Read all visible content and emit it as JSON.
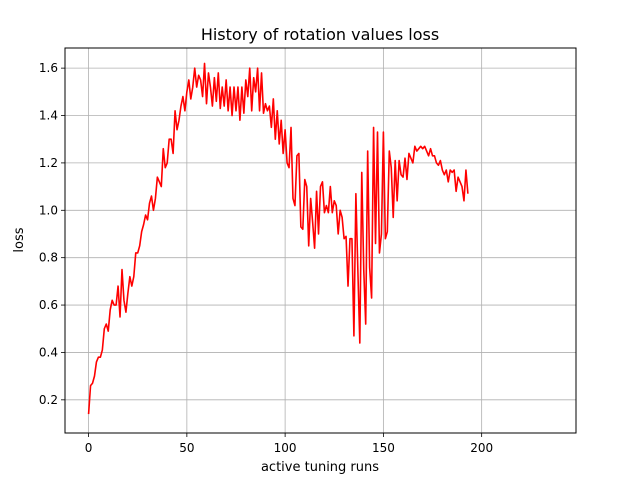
{
  "chart_data": {
    "type": "line",
    "title": "History of rotation values loss",
    "xlabel": "active tuning runs",
    "ylabel": "loss",
    "xlim": [
      -12,
      248
    ],
    "ylim": [
      0.06,
      1.685
    ],
    "xticks": [
      0,
      50,
      100,
      150,
      200
    ],
    "yticks": [
      0.2,
      0.4,
      0.6,
      0.8,
      1.0,
      1.2,
      1.4,
      1.6
    ],
    "ytick_labels": [
      "0.2",
      "0.4",
      "0.6",
      "0.8",
      "1.0",
      "1.2",
      "1.4",
      "1.6"
    ],
    "grid": true,
    "series": [
      {
        "color": "#ff0000",
        "x_start": 0,
        "x_step": 1,
        "values": [
          0.14,
          0.26,
          0.27,
          0.3,
          0.36,
          0.38,
          0.38,
          0.41,
          0.5,
          0.52,
          0.49,
          0.58,
          0.62,
          0.6,
          0.6,
          0.68,
          0.55,
          0.75,
          0.62,
          0.57,
          0.65,
          0.72,
          0.68,
          0.72,
          0.82,
          0.82,
          0.85,
          0.91,
          0.94,
          0.98,
          0.96,
          1.03,
          1.06,
          1.0,
          1.05,
          1.14,
          1.12,
          1.1,
          1.26,
          1.18,
          1.2,
          1.3,
          1.3,
          1.24,
          1.42,
          1.34,
          1.38,
          1.44,
          1.48,
          1.42,
          1.5,
          1.55,
          1.47,
          1.52,
          1.6,
          1.52,
          1.57,
          1.55,
          1.48,
          1.62,
          1.45,
          1.58,
          1.52,
          1.44,
          1.56,
          1.46,
          1.58,
          1.43,
          1.52,
          1.44,
          1.55,
          1.42,
          1.52,
          1.4,
          1.52,
          1.42,
          1.52,
          1.38,
          1.52,
          1.41,
          1.55,
          1.48,
          1.6,
          1.42,
          1.56,
          1.5,
          1.6,
          1.42,
          1.58,
          1.41,
          1.45,
          1.42,
          1.44,
          1.35,
          1.47,
          1.3,
          1.42,
          1.28,
          1.38,
          1.24,
          1.34,
          1.2,
          1.18,
          1.35,
          1.05,
          1.02,
          1.23,
          1.24,
          0.93,
          0.92,
          1.13,
          1.1,
          0.85,
          1.05,
          0.95,
          0.84,
          1.08,
          0.9,
          1.1,
          1.12,
          0.99,
          1.02,
          0.99,
          1.1,
          0.99,
          1.04,
          1.02,
          0.9,
          1.0,
          0.97,
          0.88,
          0.89,
          0.68,
          0.88,
          0.88,
          0.47,
          1.07,
          0.75,
          0.44,
          1.16,
          0.75,
          0.52,
          1.25,
          0.76,
          0.63,
          1.35,
          0.86,
          1.33,
          0.82,
          0.9,
          1.33,
          0.88,
          0.91,
          1.25,
          1.18,
          0.97,
          1.21,
          1.04,
          1.21,
          1.15,
          1.14,
          1.22,
          1.13,
          1.24,
          1.22,
          1.2,
          1.27,
          1.25,
          1.26,
          1.27,
          1.26,
          1.27,
          1.25,
          1.23,
          1.26,
          1.23,
          1.23,
          1.2,
          1.19,
          1.21,
          1.17,
          1.15,
          1.17,
          1.12,
          1.17,
          1.16,
          1.17,
          1.08,
          1.14,
          1.12,
          1.1,
          1.04,
          1.17,
          1.07
        ]
      }
    ]
  }
}
